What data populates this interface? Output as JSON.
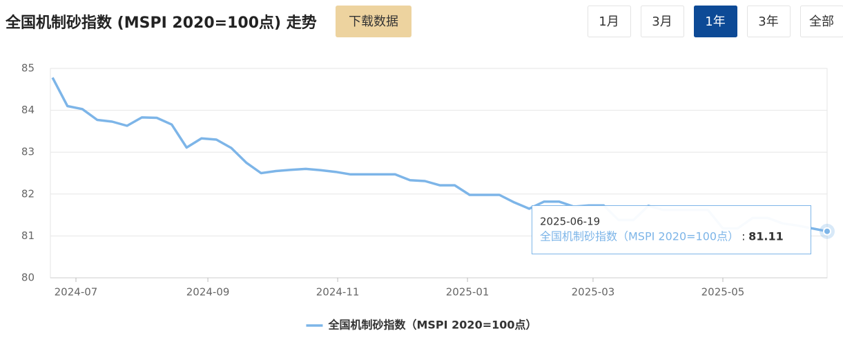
{
  "header": {
    "title": "全国机制砂指数 (MSPI 2020=100点) 走势",
    "download": "下载数据",
    "ranges": [
      "1月",
      "3月",
      "1年",
      "3年",
      "全部"
    ],
    "active_range": 2
  },
  "chart_data": {
    "type": "line",
    "x": [
      "2024-06-20",
      "2024-06-27",
      "2024-07-04",
      "2024-07-11",
      "2024-07-18",
      "2024-07-25",
      "2024-08-01",
      "2024-08-08",
      "2024-08-15",
      "2024-08-22",
      "2024-08-29",
      "2024-09-05",
      "2024-09-12",
      "2024-09-19",
      "2024-09-26",
      "2024-10-03",
      "2024-10-10",
      "2024-10-17",
      "2024-10-24",
      "2024-10-31",
      "2024-11-07",
      "2024-11-14",
      "2024-11-21",
      "2024-11-28",
      "2024-12-05",
      "2024-12-12",
      "2024-12-19",
      "2024-12-26",
      "2025-01-02",
      "2025-01-09",
      "2025-01-16",
      "2025-01-23",
      "2025-01-30",
      "2025-02-06",
      "2025-02-13",
      "2025-02-20",
      "2025-02-27",
      "2025-03-06",
      "2025-03-13",
      "2025-03-20",
      "2025-03-27",
      "2025-04-03",
      "2025-04-10",
      "2025-04-17",
      "2025-04-24",
      "2025-05-01",
      "2025-05-08",
      "2025-05-15",
      "2025-05-22",
      "2025-05-29",
      "2025-06-05",
      "2025-06-12",
      "2025-06-19"
    ],
    "series": [
      {
        "name": "全国机制砂指数（MSPI 2020=100点）",
        "color": "#7db5e8",
        "values": [
          84.78,
          84.1,
          84.03,
          83.77,
          83.73,
          83.63,
          83.83,
          83.82,
          83.66,
          83.11,
          83.33,
          83.3,
          83.1,
          82.75,
          82.5,
          82.55,
          82.58,
          82.6,
          82.57,
          82.53,
          82.47,
          82.47,
          82.47,
          82.47,
          82.33,
          82.31,
          82.21,
          82.21,
          81.98,
          81.98,
          81.98,
          81.8,
          81.65,
          81.82,
          81.82,
          81.7,
          81.73,
          81.73,
          81.38,
          81.38,
          81.72,
          81.62,
          81.62,
          81.62,
          81.62,
          81.18,
          81.18,
          81.43,
          81.43,
          81.3,
          81.25,
          81.18,
          81.11
        ]
      }
    ],
    "xlim": [
      "2024-06-19",
      "2025-06-19"
    ],
    "xticks": [
      "2024-07",
      "2024-09",
      "2024-11",
      "2025-01",
      "2025-03",
      "2025-05"
    ],
    "ylim": [
      80,
      85
    ],
    "yticks": [
      80,
      81,
      82,
      83,
      84,
      85
    ],
    "grid": true,
    "tooltip_index": 52,
    "tooltip_separator": ":"
  }
}
